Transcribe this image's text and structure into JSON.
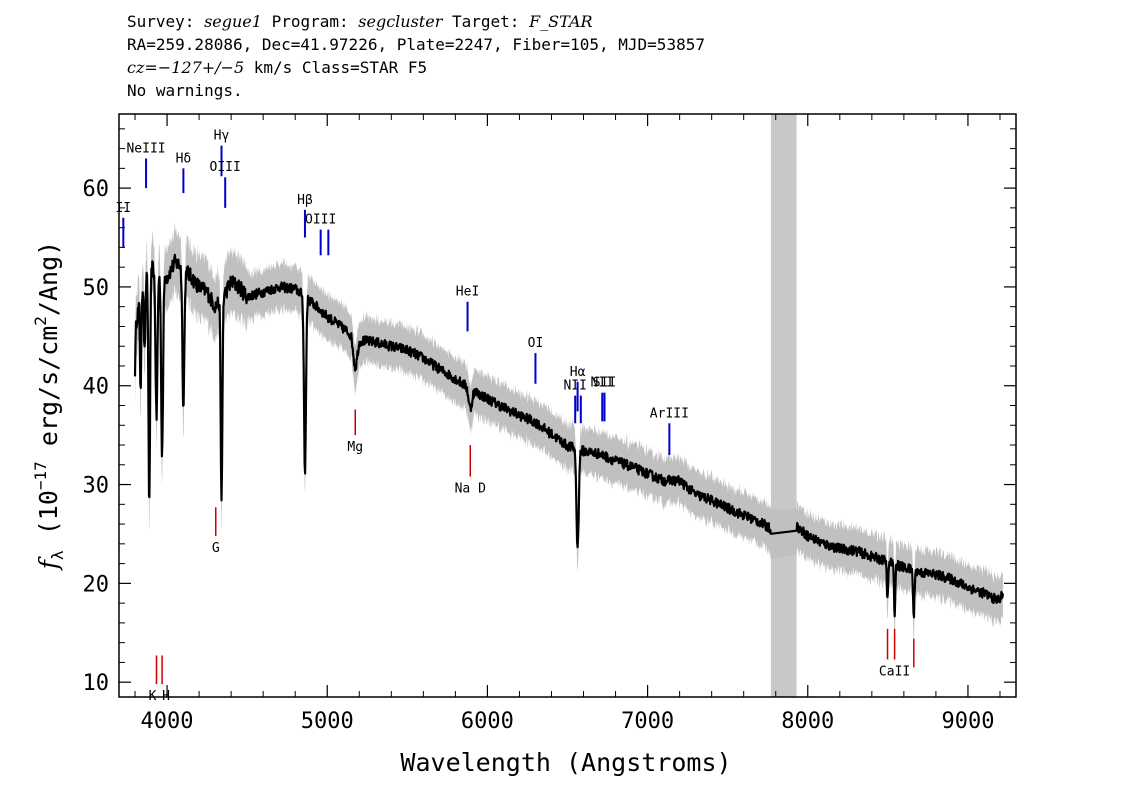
{
  "header": {
    "survey_label": "Survey:",
    "survey": "segue1",
    "program_label": "Program:",
    "program": "segcluster",
    "target_label": "Target:",
    "target": "F_STAR",
    "line2": "RA=259.28086, Dec=41.97226, Plate=2247, Fiber=105, MJD=53857",
    "cz_label": "cz=",
    "cz_value": "−127+/−5",
    "cz_rest": " km/s Class=STAR F5",
    "line4": "No warnings."
  },
  "chart_data": {
    "type": "line",
    "xlabel": "Wavelength (Angstroms)",
    "ylabel_parts": [
      "f",
      "λ",
      " (10",
      "−17",
      " erg/s/cm",
      "2",
      "/Ang)"
    ],
    "xlim": [
      3700,
      9300
    ],
    "ylim": [
      8.5,
      67.5
    ],
    "xticks": [
      4000,
      5000,
      6000,
      7000,
      8000,
      9000
    ],
    "yticks": [
      10,
      20,
      30,
      40,
      50,
      60
    ],
    "masked_region": [
      7770,
      7930
    ],
    "colors": {
      "flux": "#000000",
      "error": "#c0c0c0",
      "mask": "#c8c8c8",
      "emission": "#0000cc",
      "absorption": "#cc0000"
    },
    "continuum": [
      [
        3800,
        46
      ],
      [
        3850,
        50
      ],
      [
        3900,
        52
      ],
      [
        3950,
        51.5
      ],
      [
        4000,
        51
      ],
      [
        4050,
        52.5
      ],
      [
        4100,
        52
      ],
      [
        4150,
        51
      ],
      [
        4200,
        50
      ],
      [
        4250,
        49.5
      ],
      [
        4300,
        48
      ],
      [
        4350,
        49
      ],
      [
        4400,
        50.5
      ],
      [
        4450,
        50
      ],
      [
        4500,
        49
      ],
      [
        4600,
        49.5
      ],
      [
        4700,
        50
      ],
      [
        4800,
        49.8
      ],
      [
        4900,
        48.5
      ],
      [
        5000,
        47
      ],
      [
        5100,
        45.8
      ],
      [
        5200,
        44.6
      ],
      [
        5300,
        44.4
      ],
      [
        5400,
        44
      ],
      [
        5500,
        43.6
      ],
      [
        5600,
        42.8
      ],
      [
        5700,
        41.7
      ],
      [
        5800,
        40.7
      ],
      [
        5900,
        39.6
      ],
      [
        6000,
        38.7
      ],
      [
        6100,
        37.8
      ],
      [
        6200,
        37
      ],
      [
        6300,
        36.3
      ],
      [
        6400,
        35.1
      ],
      [
        6500,
        33.9
      ],
      [
        6600,
        33.4
      ],
      [
        6700,
        33.1
      ],
      [
        6800,
        32.4
      ],
      [
        6900,
        31.8
      ],
      [
        7000,
        31.1
      ],
      [
        7100,
        30.4
      ],
      [
        7200,
        30.4
      ],
      [
        7300,
        29
      ],
      [
        7400,
        28.4
      ],
      [
        7500,
        27.6
      ],
      [
        7600,
        26.9
      ],
      [
        7700,
        26.2
      ],
      [
        7770,
        25.5
      ],
      [
        7930,
        25.8
      ],
      [
        8000,
        24.8
      ],
      [
        8100,
        24
      ],
      [
        8200,
        23.5
      ],
      [
        8300,
        23.3
      ],
      [
        8400,
        22.7
      ],
      [
        8500,
        22.2
      ],
      [
        8600,
        21.6
      ],
      [
        8700,
        21.1
      ],
      [
        8800,
        20.9
      ],
      [
        8900,
        20.4
      ],
      [
        9000,
        19.6
      ],
      [
        9100,
        19
      ],
      [
        9180,
        18.3
      ],
      [
        9220,
        18.8
      ]
    ],
    "absorption_dips": [
      [
        3934,
        15,
        6
      ],
      [
        3969,
        18,
        6
      ],
      [
        3889,
        24,
        5
      ],
      [
        4102,
        14,
        6
      ],
      [
        4340,
        21,
        5
      ],
      [
        4861,
        18,
        6
      ],
      [
        3835,
        9,
        4
      ],
      [
        3860,
        7,
        4
      ],
      [
        3798,
        5,
        4
      ],
      [
        5175,
        3,
        12
      ],
      [
        5893,
        2,
        10
      ],
      [
        6563,
        10,
        7
      ],
      [
        8498,
        4,
        4
      ],
      [
        8542,
        5,
        4
      ],
      [
        8662,
        5,
        4
      ]
    ],
    "emission_lines": [
      {
        "label": "NeIII",
        "x": 3869,
        "y_top": 63,
        "y_bot": 60
      },
      {
        "label": "Hδ",
        "x": 4102,
        "y_top": 62,
        "y_bot": 59.5
      },
      {
        "label": "Hγ",
        "x": 4340,
        "y_top": 64.3,
        "y_bot": 61.2
      },
      {
        "label": "OIII",
        "x": 4363,
        "y_top": 61.1,
        "y_bot": 58
      },
      {
        "label": "Hβ",
        "x": 4861,
        "y_top": 57.8,
        "y_bot": 55
      },
      {
        "label": "OIII",
        "x": 4959,
        "y_top": 55.8,
        "y_bot": 53.2
      },
      {
        "label": "",
        "x": 5007,
        "y_top": 55.8,
        "y_bot": 53.2
      },
      {
        "label": "II",
        "x": 3727,
        "y_top": 57,
        "y_bot": 54
      },
      {
        "label": "HeI",
        "x": 5876,
        "y_top": 48.5,
        "y_bot": 45.5
      },
      {
        "label": "OI",
        "x": 6300,
        "y_top": 43.3,
        "y_bot": 40.2
      },
      {
        "label": "NII",
        "x": 6548,
        "y_top": 39,
        "y_bot": 36.2
      },
      {
        "label": "Hα",
        "x": 6563,
        "y_top": 40.4,
        "y_bot": 37.4
      },
      {
        "label": "",
        "x": 6583,
        "y_top": 39,
        "y_bot": 36.2
      },
      {
        "label": "NII",
        "x": 6717,
        "y_top": 39.3,
        "y_bot": 36.4
      },
      {
        "label": "SII",
        "x": 6731,
        "y_top": 39.3,
        "y_bot": 36.4
      },
      {
        "label": "ArIII",
        "x": 7136,
        "y_top": 36.2,
        "y_bot": 33
      }
    ],
    "absorption_lines": [
      {
        "label": "K",
        "x": 3934,
        "y_top": 12.7,
        "y_bot": 9.8,
        "label_dx": -4
      },
      {
        "label": "H",
        "x": 3969,
        "y_top": 12.7,
        "y_bot": 9.8,
        "label_dx": 4
      },
      {
        "label": "G",
        "x": 4304,
        "y_top": 27.7,
        "y_bot": 24.8,
        "label_dx": 0
      },
      {
        "label": "Mg",
        "x": 5175,
        "y_top": 37.6,
        "y_bot": 35,
        "label_dx": 0
      },
      {
        "label": "Na D",
        "x": 5893,
        "y_top": 34,
        "y_bot": 30.8,
        "label_dx": 0
      },
      {
        "label": "",
        "x": 8498,
        "y_top": 15.4,
        "y_bot": 12.3,
        "label_dx": 0
      },
      {
        "label": "CaII",
        "x": 8542,
        "y_top": 15.4,
        "y_bot": 12.3,
        "label_dx": 0
      },
      {
        "label": "",
        "x": 8662,
        "y_top": 14.4,
        "y_bot": 11.5,
        "label_dx": 0
      }
    ]
  }
}
